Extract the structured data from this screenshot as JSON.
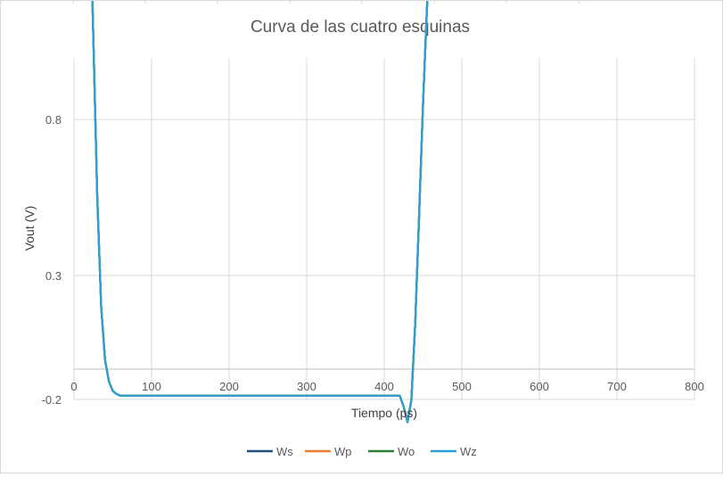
{
  "chart_data": {
    "type": "line",
    "title": "Curva de las cuatro esquinas",
    "xlabel": "Tiempo (ps)",
    "ylabel": "Vout (V)",
    "xlim": [
      0,
      800
    ],
    "ylim": [
      -0.2,
      1.8
    ],
    "x_ticks": [
      "0",
      "100",
      "200",
      "300",
      "400",
      "500",
      "600",
      "700",
      "800"
    ],
    "y_ticks": [
      "1.8",
      "1.3",
      "0.8",
      "0.3",
      "-0.2"
    ],
    "grid": true,
    "legend_position": "bottom",
    "series": [
      {
        "name": "Ws",
        "color": "#1f4e79",
        "x": [
          0,
          5,
          10,
          13,
          16,
          20,
          25,
          30,
          35,
          40,
          45,
          50,
          55,
          60,
          70,
          100,
          200,
          300,
          410,
          420,
          425,
          430,
          435,
          440,
          445,
          450,
          455,
          460,
          465,
          470,
          475,
          480,
          490,
          500,
          510,
          520,
          540,
          560,
          600,
          700,
          800
        ],
        "y": [
          1.8,
          1.92,
          1.96,
          1.95,
          1.85,
          1.55,
          1.05,
          0.55,
          0.2,
          0.03,
          -0.04,
          -0.07,
          -0.08,
          -0.085,
          -0.085,
          -0.085,
          -0.085,
          -0.085,
          -0.085,
          -0.085,
          -0.12,
          -0.17,
          -0.1,
          0.15,
          0.5,
          0.85,
          1.15,
          1.38,
          1.52,
          1.62,
          1.68,
          1.72,
          1.76,
          1.78,
          1.79,
          1.795,
          1.8,
          1.8,
          1.8,
          1.8,
          1.8
        ]
      },
      {
        "name": "Wp",
        "color": "#ed7d31",
        "x": [
          0,
          5,
          10,
          13,
          16,
          20,
          25,
          30,
          35,
          40,
          45,
          50,
          55,
          60,
          70,
          100,
          200,
          300,
          410,
          420,
          425,
          430,
          435,
          440,
          445,
          450,
          455,
          460,
          465,
          470,
          475,
          480,
          490,
          500,
          510,
          520,
          540,
          560,
          600,
          700,
          800
        ],
        "y": [
          1.8,
          1.92,
          1.96,
          1.95,
          1.85,
          1.55,
          1.05,
          0.55,
          0.2,
          0.03,
          -0.04,
          -0.07,
          -0.08,
          -0.085,
          -0.085,
          -0.085,
          -0.085,
          -0.085,
          -0.085,
          -0.085,
          -0.12,
          -0.17,
          -0.1,
          0.15,
          0.5,
          0.85,
          1.15,
          1.38,
          1.52,
          1.62,
          1.68,
          1.72,
          1.76,
          1.78,
          1.79,
          1.795,
          1.8,
          1.8,
          1.8,
          1.8,
          1.8
        ]
      },
      {
        "name": "Wo",
        "color": "#2e7d32",
        "x": [
          0,
          5,
          10,
          13,
          16,
          20,
          25,
          30,
          35,
          40,
          45,
          50,
          55,
          60,
          70,
          100,
          200,
          300,
          410,
          420,
          425,
          430,
          435,
          440,
          445,
          450,
          455,
          460,
          465,
          470,
          475,
          480,
          490,
          500,
          510,
          520,
          540,
          560,
          600,
          700,
          800
        ],
        "y": [
          1.8,
          1.92,
          1.96,
          1.95,
          1.85,
          1.55,
          1.05,
          0.55,
          0.2,
          0.03,
          -0.04,
          -0.07,
          -0.08,
          -0.085,
          -0.085,
          -0.085,
          -0.085,
          -0.085,
          -0.085,
          -0.085,
          -0.12,
          -0.17,
          -0.1,
          0.15,
          0.5,
          0.85,
          1.15,
          1.38,
          1.52,
          1.62,
          1.68,
          1.72,
          1.76,
          1.78,
          1.79,
          1.795,
          1.8,
          1.8,
          1.8,
          1.8,
          1.8
        ]
      },
      {
        "name": "Wz",
        "color": "#2e9fd6",
        "x": [
          0,
          5,
          10,
          13,
          16,
          20,
          25,
          30,
          35,
          40,
          45,
          50,
          55,
          60,
          70,
          100,
          200,
          300,
          410,
          420,
          425,
          430,
          435,
          440,
          445,
          450,
          455,
          460,
          465,
          470,
          475,
          480,
          490,
          500,
          510,
          520,
          540,
          560,
          600,
          700,
          800
        ],
        "y": [
          1.8,
          1.92,
          1.96,
          1.95,
          1.85,
          1.55,
          1.05,
          0.55,
          0.2,
          0.03,
          -0.04,
          -0.07,
          -0.08,
          -0.085,
          -0.085,
          -0.085,
          -0.085,
          -0.085,
          -0.085,
          -0.085,
          -0.12,
          -0.17,
          -0.1,
          0.15,
          0.5,
          0.85,
          1.15,
          1.38,
          1.52,
          1.62,
          1.68,
          1.72,
          1.76,
          1.78,
          1.79,
          1.795,
          1.8,
          1.8,
          1.8,
          1.8,
          1.8
        ]
      }
    ]
  }
}
